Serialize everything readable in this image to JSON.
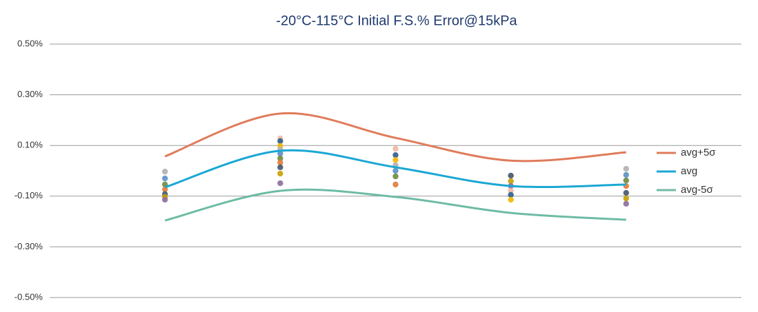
{
  "chart_data": {
    "type": "line",
    "title": "-20°C-115°C Initial F.S.% Error@15kPa",
    "categories": [
      null,
      null,
      null,
      null,
      null
    ],
    "series": [
      {
        "name": "avg+5σ",
        "color": "#e07b5a",
        "values": [
          0.057,
          0.226,
          0.13,
          0.04,
          0.073
        ]
      },
      {
        "name": "avg",
        "color": "#1aa7d4",
        "values": [
          -0.065,
          0.079,
          0.014,
          -0.06,
          -0.054
        ]
      },
      {
        "name": "avg-5σ",
        "color": "#6dbba5",
        "values": [
          -0.196,
          -0.079,
          -0.103,
          -0.166,
          -0.193
        ]
      }
    ],
    "points": [
      [
        -0.003,
        -0.03,
        -0.054,
        -0.073,
        -0.092,
        -0.103,
        -0.114
      ],
      [
        0.128,
        0.117,
        0.098,
        0.084,
        0.068,
        0.049,
        0.033,
        0.014,
        -0.011,
        -0.049
      ],
      [
        0.087,
        0.062,
        0.043,
        0.022,
        0,
        -0.022,
        -0.054
      ],
      [
        -0.019,
        -0.041,
        -0.06,
        -0.079,
        -0.095,
        -0.114
      ],
      [
        0.008,
        -0.016,
        -0.038,
        -0.06,
        -0.087,
        -0.109,
        -0.13
      ]
    ],
    "point_colors": [
      "#b0b0b0",
      "#5b8fc7",
      "#6e8b3d",
      "#e07b39",
      "#44546a",
      "#c5a000",
      "#8c6d9e",
      "#f0b8a0",
      "#2e5d8c",
      "#f2b600"
    ],
    "ylim": [
      -0.5,
      0.5
    ],
    "yticks": [
      {
        "value": -0.5,
        "label": "-0.50%"
      },
      {
        "value": -0.3,
        "label": "-0.30%"
      },
      {
        "value": -0.1,
        "label": "-0.10%"
      },
      {
        "value": 0.1,
        "label": "0.10%"
      },
      {
        "value": 0.3,
        "label": "0.30%"
      },
      {
        "value": 0.5,
        "label": "0.50%"
      }
    ],
    "grid": true,
    "legend": "right"
  }
}
